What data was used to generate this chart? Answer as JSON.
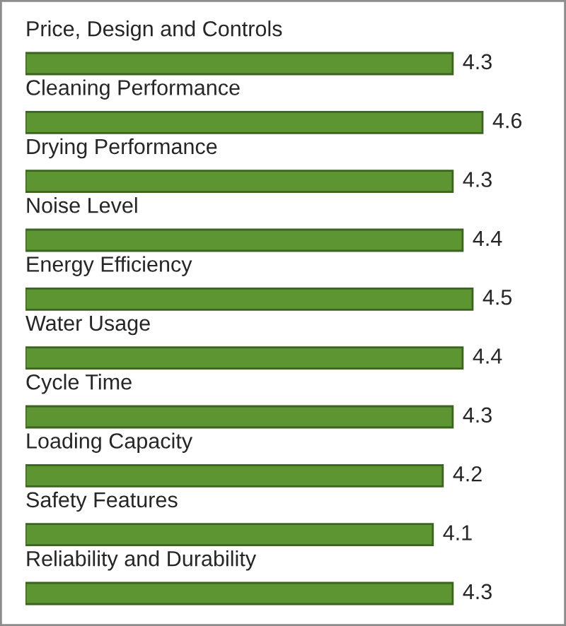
{
  "chart_data": {
    "type": "bar",
    "orientation": "horizontal",
    "categories": [
      "Price, Design and Controls",
      "Cleaning Performance",
      "Drying Performance",
      "Noise Level",
      "Energy Efficiency",
      "Water Usage",
      "Cycle Time",
      "Loading Capacity",
      "Safety Features",
      "Reliability and Durability"
    ],
    "values": [
      4.3,
      4.6,
      4.3,
      4.4,
      4.5,
      4.4,
      4.3,
      4.2,
      4.1,
      4.3
    ],
    "color": "#5e9533",
    "data_labels": true,
    "tick_labels": "y"
  }
}
